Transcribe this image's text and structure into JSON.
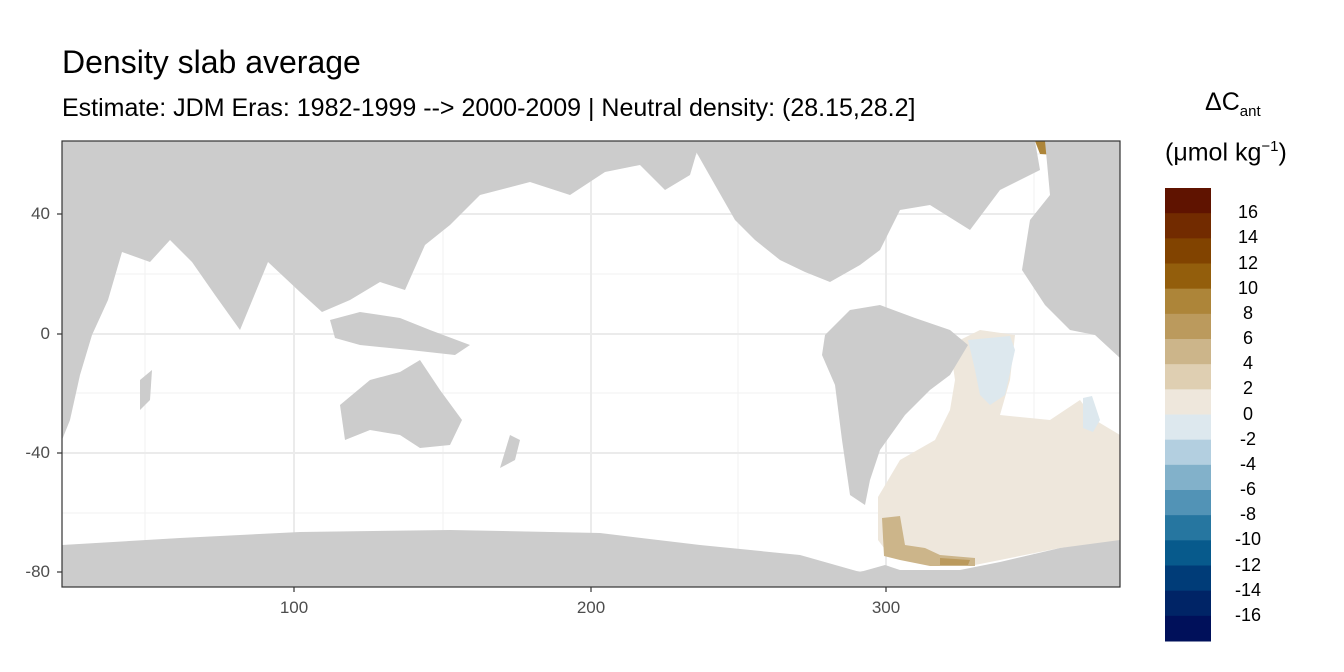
{
  "title": "Density slab average",
  "subtitle": "Estimate: JDM Eras: 1982-1999 --> 2000-2009 | Neutral density: (28.15,28.2]",
  "chart_data": {
    "type": "heatmap",
    "x_ticks": [
      "100",
      "200",
      "300"
    ],
    "y_ticks": [
      "40",
      "0",
      "-40",
      "-80"
    ],
    "xlim": [
      21.5,
      379.5
    ],
    "ylim": [
      -85,
      64.5
    ],
    "legend": {
      "title_main": "ΔC",
      "title_sub": "ant",
      "unit": "(μmol kg",
      "unit_sup": "−1",
      "unit_close": ")",
      "labels": [
        "16",
        "14",
        "12",
        "10",
        "8",
        "6",
        "4",
        "2",
        "0",
        "-2",
        "-4",
        "-6",
        "-8",
        "-10",
        "-12",
        "-14",
        "-16"
      ],
      "colors": [
        "#5f1300",
        "#722b00",
        "#814300",
        "#935e0c",
        "#ad8539",
        "#bb9a5d",
        "#ccb58a",
        "#dfcfb2",
        "#eee7dc",
        "#dde8ee",
        "#b3cfe0",
        "#82b1ca",
        "#5293b6",
        "#2676a0",
        "#075a8c",
        "#003c78",
        "#002466",
        "#00105a"
      ],
      "placement": "right"
    },
    "land_color": "#cccccc",
    "summary_values": "Positive (0 to 2) values across South Atlantic; small patches of 0 to -2 in tropical/subtropical Atlantic; 4 to 8 near Antarctic shelf (Weddell Sea)"
  }
}
